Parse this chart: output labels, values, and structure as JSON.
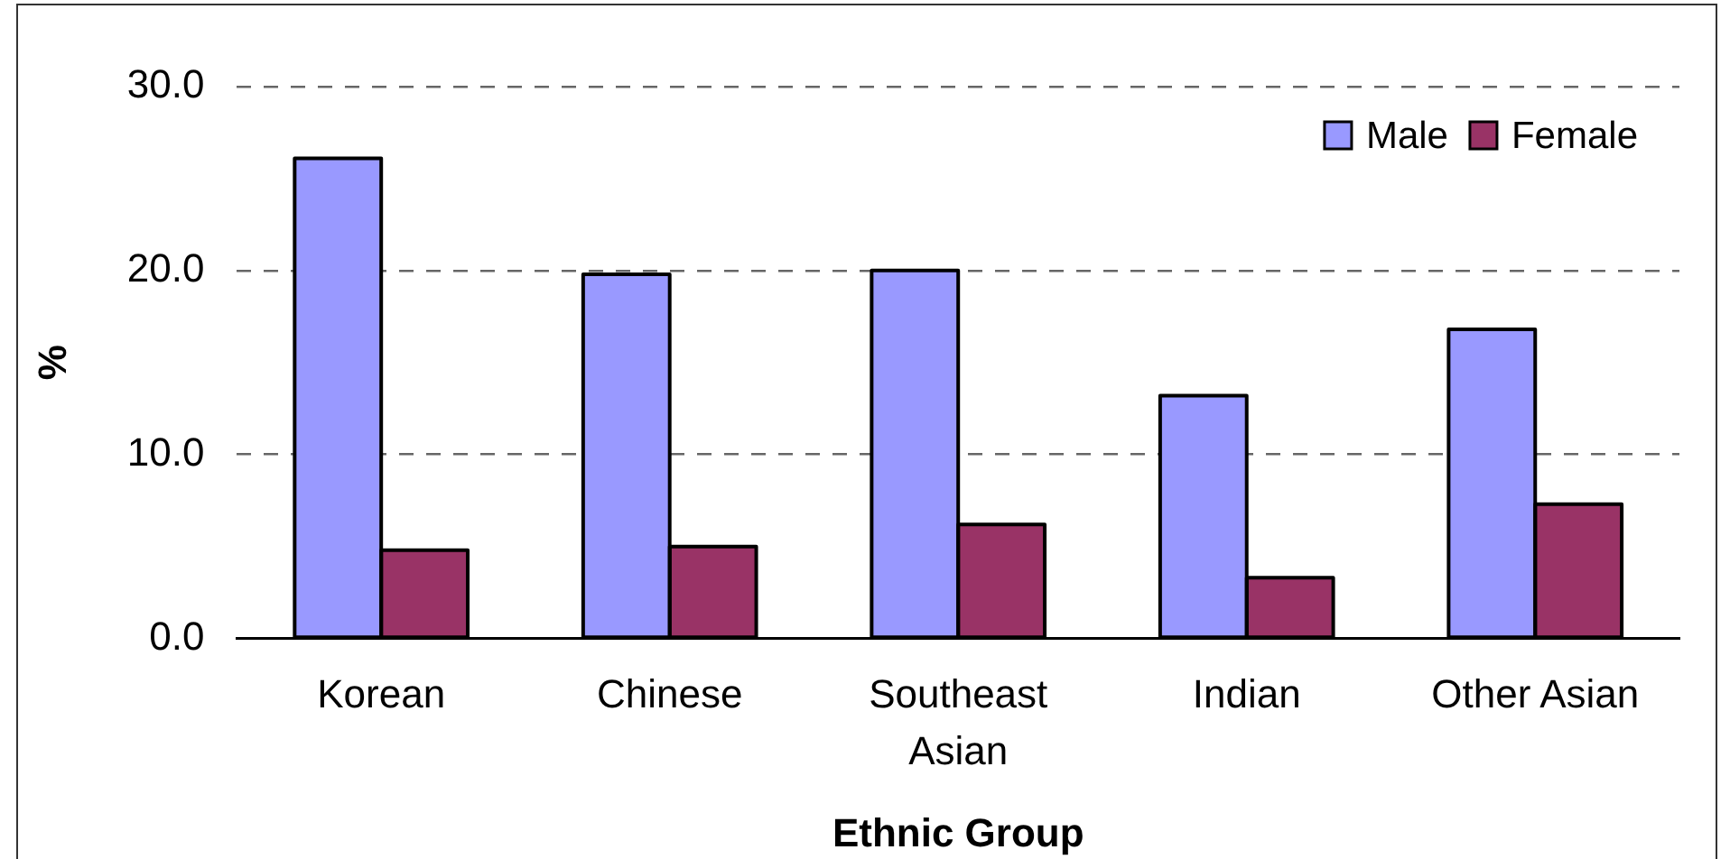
{
  "chart_data": {
    "type": "bar",
    "categories": [
      "Korean",
      "Chinese",
      "Southeast Asian",
      "Indian",
      "Other Asian"
    ],
    "series": [
      {
        "name": "Male",
        "color": "#9999ff",
        "values": [
          26.1,
          19.8,
          20.0,
          13.2,
          16.8
        ]
      },
      {
        "name": "Female",
        "color": "#993366",
        "values": [
          4.8,
          5.0,
          6.2,
          3.3,
          7.3
        ]
      }
    ],
    "xlabel": "Ethnic Group",
    "ylabel": "%",
    "ylim": [
      0,
      30
    ],
    "yticks": [
      {
        "value": 0,
        "label": "0.0"
      },
      {
        "value": 10,
        "label": "10.0"
      },
      {
        "value": 20,
        "label": "20.0"
      },
      {
        "value": 30,
        "label": "30.0"
      }
    ],
    "grid": "y",
    "legend": "top right"
  }
}
